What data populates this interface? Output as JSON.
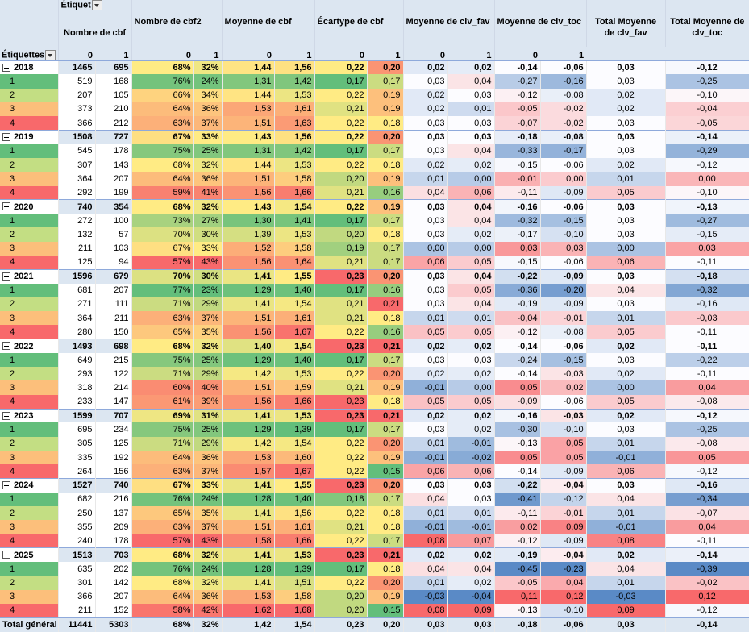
{
  "header": {
    "column_labels": "Étiquet",
    "row_labels": "Étiquettes",
    "groups": [
      "Nombre de cbf",
      "Nombre de cbf2",
      "Moyenne de cbf",
      "Écartype de cbf",
      "Moyenne de clv_fav",
      "Moyenne de clv_toc",
      "Total Moyenne de clv_fav",
      "Total Moyenne de clv_toc"
    ],
    "sub_headers": [
      "0",
      "1",
      "0",
      "1",
      "0",
      "1",
      "0",
      "1",
      "0",
      "1",
      "0",
      "1"
    ]
  },
  "table": {
    "rows": [
      {
        "label": "2018",
        "cells": [
          "1465",
          "695",
          "68%",
          "32%",
          "1,44",
          "1,56",
          "0,22",
          "0,20",
          "0,02",
          "0,02",
          "-0,14",
          "-0,06",
          "0,03",
          "-0,12"
        ]
      },
      {
        "label": "1",
        "cells": [
          "519",
          "168",
          "76%",
          "24%",
          "1,31",
          "1,42",
          "0,17",
          "0,17",
          "0,03",
          "0,04",
          "-0,27",
          "-0,16",
          "0,03",
          "-0,25"
        ]
      },
      {
        "label": "2",
        "cells": [
          "207",
          "105",
          "66%",
          "34%",
          "1,44",
          "1,53",
          "0,22",
          "0,19",
          "0,02",
          "0,03",
          "-0,12",
          "-0,08",
          "0,02",
          "-0,10"
        ]
      },
      {
        "label": "3",
        "cells": [
          "373",
          "210",
          "64%",
          "36%",
          "1,53",
          "1,61",
          "0,21",
          "0,19",
          "0,02",
          "0,01",
          "-0,05",
          "-0,02",
          "0,02",
          "-0,04"
        ]
      },
      {
        "label": "4",
        "cells": [
          "366",
          "212",
          "63%",
          "37%",
          "1,51",
          "1,63",
          "0,22",
          "0,18",
          "0,03",
          "0,03",
          "-0,07",
          "-0,02",
          "0,03",
          "-0,05"
        ]
      },
      {
        "label": "2019",
        "cells": [
          "1508",
          "727",
          "67%",
          "33%",
          "1,43",
          "1,56",
          "0,22",
          "0,20",
          "0,03",
          "0,03",
          "-0,18",
          "-0,08",
          "0,03",
          "-0,14"
        ]
      },
      {
        "label": "1",
        "cells": [
          "545",
          "178",
          "75%",
          "25%",
          "1,31",
          "1,42",
          "0,17",
          "0,17",
          "0,03",
          "0,04",
          "-0,33",
          "-0,17",
          "0,03",
          "-0,29"
        ]
      },
      {
        "label": "2",
        "cells": [
          "307",
          "143",
          "68%",
          "32%",
          "1,44",
          "1,53",
          "0,22",
          "0,18",
          "0,02",
          "0,02",
          "-0,15",
          "-0,06",
          "0,02",
          "-0,12"
        ]
      },
      {
        "label": "3",
        "cells": [
          "364",
          "207",
          "64%",
          "36%",
          "1,51",
          "1,58",
          "0,20",
          "0,19",
          "0,01",
          "0,00",
          "-0,01",
          "0,00",
          "0,01",
          "0,00"
        ]
      },
      {
        "label": "4",
        "cells": [
          "292",
          "199",
          "59%",
          "41%",
          "1,56",
          "1,66",
          "0,21",
          "0,16",
          "0,04",
          "0,06",
          "-0,11",
          "-0,09",
          "0,05",
          "-0,10"
        ]
      },
      {
        "label": "2020",
        "cells": [
          "740",
          "354",
          "68%",
          "32%",
          "1,43",
          "1,54",
          "0,22",
          "0,19",
          "0,03",
          "0,04",
          "-0,16",
          "-0,06",
          "0,03",
          "-0,13"
        ]
      },
      {
        "label": "1",
        "cells": [
          "272",
          "100",
          "73%",
          "27%",
          "1,30",
          "1,41",
          "0,17",
          "0,17",
          "0,03",
          "0,04",
          "-0,32",
          "-0,15",
          "0,03",
          "-0,27"
        ]
      },
      {
        "label": "2",
        "cells": [
          "132",
          "57",
          "70%",
          "30%",
          "1,39",
          "1,53",
          "0,20",
          "0,18",
          "0,03",
          "0,02",
          "-0,17",
          "-0,10",
          "0,03",
          "-0,15"
        ]
      },
      {
        "label": "3",
        "cells": [
          "211",
          "103",
          "67%",
          "33%",
          "1,52",
          "1,58",
          "0,19",
          "0,17",
          "0,00",
          "0,00",
          "0,03",
          "0,03",
          "0,00",
          "0,03"
        ]
      },
      {
        "label": "4",
        "cells": [
          "125",
          "94",
          "57%",
          "43%",
          "1,56",
          "1,64",
          "0,21",
          "0,17",
          "0,06",
          "0,05",
          "-0,15",
          "-0,06",
          "0,06",
          "-0,11"
        ]
      },
      {
        "label": "2021",
        "cells": [
          "1596",
          "679",
          "70%",
          "30%",
          "1,41",
          "1,55",
          "0,23",
          "0,20",
          "0,03",
          "0,04",
          "-0,22",
          "-0,09",
          "0,03",
          "-0,18"
        ]
      },
      {
        "label": "1",
        "cells": [
          "681",
          "207",
          "77%",
          "23%",
          "1,29",
          "1,40",
          "0,17",
          "0,16",
          "0,03",
          "0,05",
          "-0,36",
          "-0,20",
          "0,04",
          "-0,32"
        ]
      },
      {
        "label": "2",
        "cells": [
          "271",
          "111",
          "71%",
          "29%",
          "1,41",
          "1,54",
          "0,21",
          "0,21",
          "0,03",
          "0,04",
          "-0,19",
          "-0,09",
          "0,03",
          "-0,16"
        ]
      },
      {
        "label": "3",
        "cells": [
          "364",
          "211",
          "63%",
          "37%",
          "1,51",
          "1,61",
          "0,21",
          "0,18",
          "0,01",
          "0,01",
          "-0,04",
          "-0,01",
          "0,01",
          "-0,03"
        ]
      },
      {
        "label": "4",
        "cells": [
          "280",
          "150",
          "65%",
          "35%",
          "1,56",
          "1,67",
          "0,22",
          "0,16",
          "0,05",
          "0,05",
          "-0,12",
          "-0,08",
          "0,05",
          "-0,11"
        ]
      },
      {
        "label": "2022",
        "cells": [
          "1493",
          "698",
          "68%",
          "32%",
          "1,40",
          "1,54",
          "0,23",
          "0,21",
          "0,02",
          "0,02",
          "-0,14",
          "-0,06",
          "0,02",
          "-0,11"
        ]
      },
      {
        "label": "1",
        "cells": [
          "649",
          "215",
          "75%",
          "25%",
          "1,29",
          "1,40",
          "0,17",
          "0,17",
          "0,03",
          "0,03",
          "-0,24",
          "-0,15",
          "0,03",
          "-0,22"
        ]
      },
      {
        "label": "2",
        "cells": [
          "293",
          "122",
          "71%",
          "29%",
          "1,42",
          "1,53",
          "0,22",
          "0,20",
          "0,02",
          "0,02",
          "-0,14",
          "-0,03",
          "0,02",
          "-0,11"
        ]
      },
      {
        "label": "3",
        "cells": [
          "318",
          "214",
          "60%",
          "40%",
          "1,51",
          "1,59",
          "0,21",
          "0,19",
          "-0,01",
          "0,00",
          "0,05",
          "0,02",
          "0,00",
          "0,04"
        ]
      },
      {
        "label": "4",
        "cells": [
          "233",
          "147",
          "61%",
          "39%",
          "1,56",
          "1,66",
          "0,23",
          "0,18",
          "0,05",
          "0,05",
          "-0,09",
          "-0,06",
          "0,05",
          "-0,08"
        ]
      },
      {
        "label": "2023",
        "cells": [
          "1599",
          "707",
          "69%",
          "31%",
          "1,41",
          "1,53",
          "0,23",
          "0,21",
          "0,02",
          "0,02",
          "-0,16",
          "-0,03",
          "0,02",
          "-0,12"
        ]
      },
      {
        "label": "1",
        "cells": [
          "695",
          "234",
          "75%",
          "25%",
          "1,29",
          "1,39",
          "0,17",
          "0,17",
          "0,03",
          "0,02",
          "-0,30",
          "-0,10",
          "0,03",
          "-0,25"
        ]
      },
      {
        "label": "2",
        "cells": [
          "305",
          "125",
          "71%",
          "29%",
          "1,42",
          "1,54",
          "0,22",
          "0,20",
          "0,01",
          "-0,01",
          "-0,13",
          "0,05",
          "0,01",
          "-0,08"
        ]
      },
      {
        "label": "3",
        "cells": [
          "335",
          "192",
          "64%",
          "36%",
          "1,53",
          "1,60",
          "0,22",
          "0,19",
          "-0,01",
          "-0,02",
          "0,05",
          "0,05",
          "-0,01",
          "0,05"
        ]
      },
      {
        "label": "4",
        "cells": [
          "264",
          "156",
          "63%",
          "37%",
          "1,57",
          "1,67",
          "0,22",
          "0,15",
          "0,06",
          "0,06",
          "-0,14",
          "-0,09",
          "0,06",
          "-0,12"
        ]
      },
      {
        "label": "2024",
        "cells": [
          "1527",
          "740",
          "67%",
          "33%",
          "1,41",
          "1,55",
          "0,23",
          "0,20",
          "0,03",
          "0,03",
          "-0,22",
          "-0,04",
          "0,03",
          "-0,16"
        ]
      },
      {
        "label": "1",
        "cells": [
          "682",
          "216",
          "76%",
          "24%",
          "1,28",
          "1,40",
          "0,18",
          "0,17",
          "0,04",
          "0,03",
          "-0,41",
          "-0,12",
          "0,04",
          "-0,34"
        ]
      },
      {
        "label": "2",
        "cells": [
          "250",
          "137",
          "65%",
          "35%",
          "1,41",
          "1,56",
          "0,22",
          "0,18",
          "0,01",
          "0,01",
          "-0,11",
          "-0,01",
          "0,01",
          "-0,07"
        ]
      },
      {
        "label": "3",
        "cells": [
          "355",
          "209",
          "63%",
          "37%",
          "1,51",
          "1,61",
          "0,21",
          "0,18",
          "-0,01",
          "-0,01",
          "0,02",
          "0,09",
          "-0,01",
          "0,04"
        ]
      },
      {
        "label": "4",
        "cells": [
          "240",
          "178",
          "57%",
          "43%",
          "1,58",
          "1,66",
          "0,22",
          "0,17",
          "0,08",
          "0,07",
          "-0,12",
          "-0,09",
          "0,08",
          "-0,11"
        ]
      },
      {
        "label": "2025",
        "cells": [
          "1513",
          "703",
          "68%",
          "32%",
          "1,41",
          "1,53",
          "0,23",
          "0,21",
          "0,02",
          "0,02",
          "-0,19",
          "-0,04",
          "0,02",
          "-0,14"
        ]
      },
      {
        "label": "1",
        "cells": [
          "635",
          "202",
          "76%",
          "24%",
          "1,28",
          "1,39",
          "0,17",
          "0,18",
          "0,04",
          "0,04",
          "-0,45",
          "-0,23",
          "0,04",
          "-0,39"
        ]
      },
      {
        "label": "2",
        "cells": [
          "301",
          "142",
          "68%",
          "32%",
          "1,41",
          "1,51",
          "0,22",
          "0,20",
          "0,01",
          "0,02",
          "-0,05",
          "0,04",
          "0,01",
          "-0,02"
        ]
      },
      {
        "label": "3",
        "cells": [
          "366",
          "207",
          "64%",
          "36%",
          "1,53",
          "1,58",
          "0,20",
          "0,19",
          "-0,03",
          "-0,04",
          "0,11",
          "0,12",
          "-0,03",
          "0,12"
        ]
      },
      {
        "label": "4",
        "cells": [
          "211",
          "152",
          "58%",
          "42%",
          "1,62",
          "1,68",
          "0,20",
          "0,15",
          "0,08",
          "0,09",
          "-0,13",
          "-0,10",
          "0,09",
          "-0,12"
        ]
      },
      {
        "label": "Total général",
        "cells": [
          "11441",
          "5303",
          "68%",
          "32%",
          "1,42",
          "1,54",
          "0,23",
          "0,20",
          "0,03",
          "0,03",
          "-0,18",
          "-0,06",
          "0,03",
          "-0,14"
        ]
      }
    ]
  }
}
